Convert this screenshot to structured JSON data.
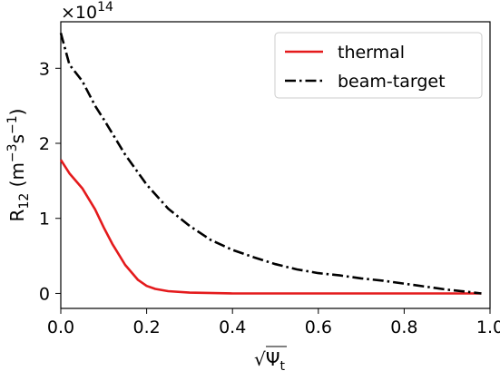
{
  "chart_data": {
    "type": "line",
    "xlim": [
      0.0,
      1.0
    ],
    "ylim": [
      -0.2,
      3.62
    ],
    "x_ticks": [
      0.0,
      0.2,
      0.4,
      0.6,
      0.8,
      1.0
    ],
    "x_tick_labels": [
      "0.0",
      "0.2",
      "0.4",
      "0.6",
      "0.8",
      "1.0"
    ],
    "y_ticks": [
      0,
      1,
      2,
      3
    ],
    "y_tick_labels": [
      "0",
      "1",
      "2",
      "3"
    ],
    "y_scale_base": "×10",
    "y_scale_exponent": "14",
    "xlabel": {
      "radical": "√",
      "symbol": "Ψ",
      "subscript": "t"
    },
    "ylabel": {
      "main": "R",
      "sub": "12",
      "unit_open": " (m",
      "exp1": "−3",
      "mid": "s",
      "exp2": "−1",
      "unit_close": ")"
    },
    "legend": {
      "position": "top-right"
    },
    "grid": false,
    "series": [
      {
        "name": "thermal",
        "color": "#e41a1c",
        "style": "solid",
        "x": [
          0.0,
          0.02,
          0.05,
          0.08,
          0.1,
          0.12,
          0.15,
          0.18,
          0.2,
          0.22,
          0.25,
          0.3,
          0.4,
          0.5,
          0.6,
          0.7,
          0.8,
          0.9,
          0.98
        ],
        "y": [
          1.78,
          1.6,
          1.4,
          1.12,
          0.88,
          0.66,
          0.38,
          0.18,
          0.1,
          0.06,
          0.03,
          0.01,
          0.0,
          0.0,
          0.0,
          0.0,
          0.0,
          0.0,
          0.0
        ]
      },
      {
        "name": "beam-target",
        "color": "#000000",
        "style": "dashdot",
        "x": [
          0.0,
          0.02,
          0.05,
          0.08,
          0.1,
          0.15,
          0.2,
          0.25,
          0.3,
          0.35,
          0.4,
          0.45,
          0.5,
          0.55,
          0.6,
          0.65,
          0.7,
          0.75,
          0.8,
          0.85,
          0.9,
          0.95,
          0.98
        ],
        "y": [
          3.47,
          3.05,
          2.83,
          2.5,
          2.32,
          1.85,
          1.45,
          1.13,
          0.9,
          0.71,
          0.58,
          0.48,
          0.39,
          0.32,
          0.27,
          0.24,
          0.2,
          0.17,
          0.13,
          0.09,
          0.05,
          0.02,
          0.0
        ]
      }
    ]
  }
}
